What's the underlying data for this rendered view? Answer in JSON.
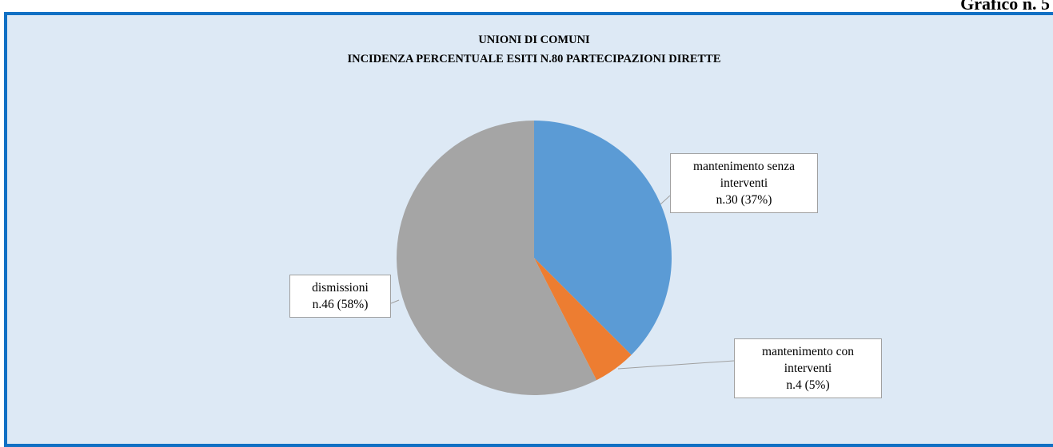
{
  "page_label": "Grafico n. 5",
  "chart_data": {
    "type": "pie",
    "title": "UNIONI DI COMUNI",
    "subtitle": "INCIDENZA PERCENTUALE ESITI N.80 PARTECIPAZIONI DIRETTE",
    "categories": [
      "mantenimento senza interventi",
      "mantenimento con interventi",
      "dismissioni"
    ],
    "values": [
      30,
      4,
      46
    ],
    "value_labels": [
      "n.30 (37%)",
      "n.4 (5%)",
      "n.46 (58%)"
    ],
    "colors": [
      "#5b9bd5",
      "#ed7d31",
      "#a5a5a5"
    ]
  }
}
